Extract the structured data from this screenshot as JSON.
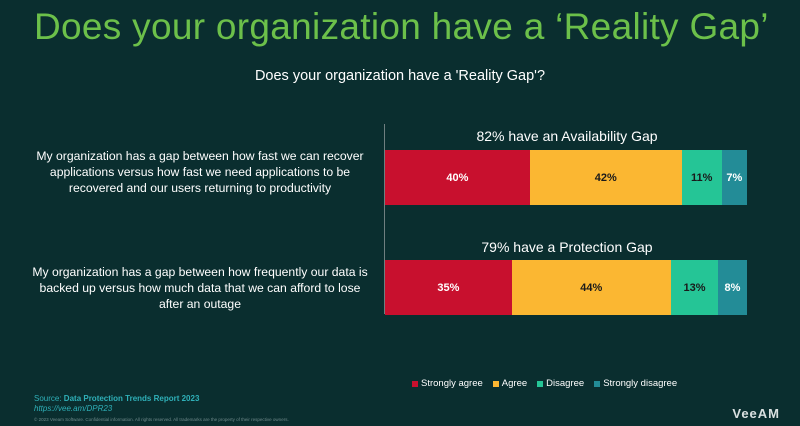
{
  "slide": {
    "title": "Does your organization have a ‘Reality Gap’",
    "source_prefix": "Source: ",
    "source_title": "Data Protection Trends Report 2023",
    "source_url": "https://vee.am/DPR23",
    "copyright": "© 2023 Veeam Software. Confidential information. All rights reserved. All trademarks are the property of their respective owners.",
    "logo": "VeeAM"
  },
  "chart_data": {
    "type": "bar",
    "orientation": "horizontal",
    "stacked": true,
    "title": "Does your organization have a 'Reality Gap'?",
    "categories": [
      "My organization has a gap between how fast we can recover applications versus how fast we need applications to be recovered and our users returning to productivity",
      "My organization has a gap between how frequently our data is backed up versus how much data that we can afford to lose after an outage"
    ],
    "bar_titles": [
      "82% have an Availability Gap",
      "79% have a Protection Gap"
    ],
    "series": [
      {
        "name": "Strongly agree",
        "color": "#c8102e",
        "text_color": "#ffffff",
        "values": [
          40,
          35
        ],
        "labels": [
          "40%",
          "35%"
        ]
      },
      {
        "name": "Agree",
        "color": "#fbb732",
        "text_color": "#1a1a1a",
        "values": [
          42,
          44
        ],
        "labels": [
          "42%",
          "44%"
        ]
      },
      {
        "name": "Disagree",
        "color": "#25c596",
        "text_color": "#1a1a1a",
        "values": [
          11,
          13
        ],
        "labels": [
          "11%",
          "13%"
        ]
      },
      {
        "name": "Strongly disagree",
        "color": "#238c97",
        "text_color": "#ffffff",
        "values": [
          7,
          8
        ],
        "labels": [
          "7%",
          "8%"
        ]
      }
    ],
    "xlim": [
      0,
      100
    ],
    "legend_position": "bottom-right"
  }
}
